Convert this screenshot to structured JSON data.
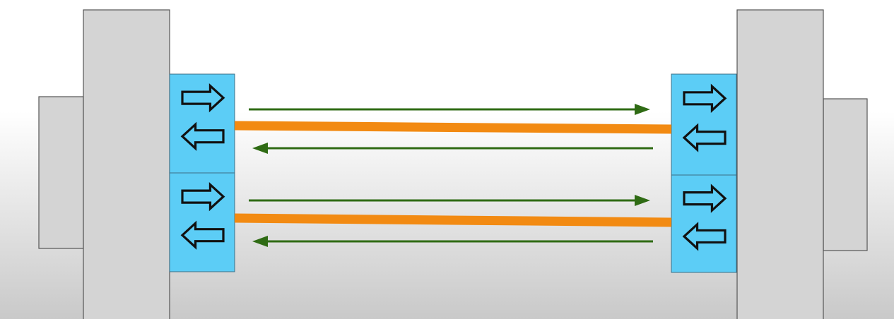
{
  "diagram": {
    "kind": "full-duplex-link",
    "background": {
      "top": "#ffffff",
      "bottom": "#c9c9c9"
    },
    "devices": [
      {
        "id": "left-device",
        "side": "left",
        "color": "#d4d4d4",
        "stroke": "#555555"
      },
      {
        "id": "right-device",
        "side": "right",
        "color": "#d4d4d4",
        "stroke": "#555555"
      }
    ],
    "ports": [
      {
        "id": "left-port-1",
        "device": "left-device",
        "color": "#5ccdf6",
        "icon": "bidirectional-arrows-icon"
      },
      {
        "id": "left-port-2",
        "device": "left-device",
        "color": "#5ccdf6",
        "icon": "bidirectional-arrows-icon"
      },
      {
        "id": "right-port-1",
        "device": "right-device",
        "color": "#5ccdf6",
        "icon": "bidirectional-arrows-icon"
      },
      {
        "id": "right-port-2",
        "device": "right-device",
        "color": "#5ccdf6",
        "icon": "bidirectional-arrows-icon"
      }
    ],
    "links": [
      {
        "id": "link-1",
        "from": "left-port-1",
        "to": "right-port-1",
        "cable_color": "#f28a12",
        "signals": [
          {
            "direction": "left-to-right",
            "color": "#2f6b14"
          },
          {
            "direction": "right-to-left",
            "color": "#2f6b14"
          }
        ]
      },
      {
        "id": "link-2",
        "from": "left-port-2",
        "to": "right-port-2",
        "cable_color": "#f28a12",
        "signals": [
          {
            "direction": "left-to-right",
            "color": "#2f6b14"
          },
          {
            "direction": "right-to-left",
            "color": "#2f6b14"
          }
        ]
      }
    ]
  }
}
